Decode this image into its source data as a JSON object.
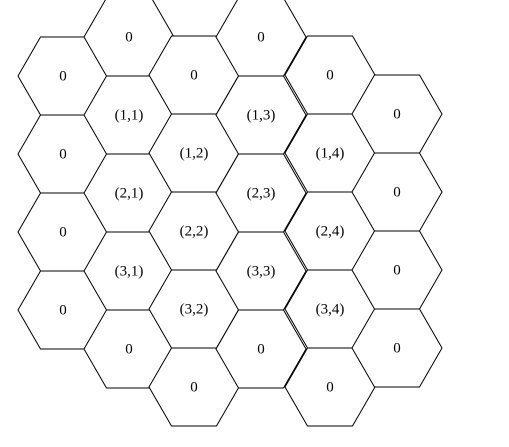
{
  "diagram": {
    "cells": [
      {
        "col": 0,
        "label": "0"
      },
      {
        "col": 0,
        "label": "0"
      },
      {
        "col": 0,
        "label": "0"
      },
      {
        "col": 0,
        "label": "0"
      },
      {
        "col": 1,
        "label": "0"
      },
      {
        "col": 1,
        "label": "(1,1)"
      },
      {
        "col": 1,
        "label": "(2,1)"
      },
      {
        "col": 1,
        "label": "(3,1)"
      },
      {
        "col": 1,
        "label": "0"
      },
      {
        "col": 2,
        "label": "0"
      },
      {
        "col": 2,
        "label": "(1,2)"
      },
      {
        "col": 2,
        "label": "(2,2)"
      },
      {
        "col": 2,
        "label": "(3,2)"
      },
      {
        "col": 2,
        "label": "0"
      },
      {
        "col": 3,
        "label": "0"
      },
      {
        "col": 3,
        "label": "(1,3)"
      },
      {
        "col": 3,
        "label": "(2,3)"
      },
      {
        "col": 3,
        "label": "(3,3)"
      },
      {
        "col": 3,
        "label": "0"
      },
      {
        "col": 4,
        "label": "0"
      },
      {
        "col": 4,
        "label": "(1,4)"
      },
      {
        "col": 4,
        "label": "(2,4)"
      },
      {
        "col": 4,
        "label": "(3,4)"
      },
      {
        "col": 4,
        "label": "0"
      },
      {
        "col": 5,
        "label": "0"
      },
      {
        "col": 5,
        "label": "0"
      },
      {
        "col": 5,
        "label": "0"
      },
      {
        "col": 5,
        "label": "0"
      }
    ]
  }
}
